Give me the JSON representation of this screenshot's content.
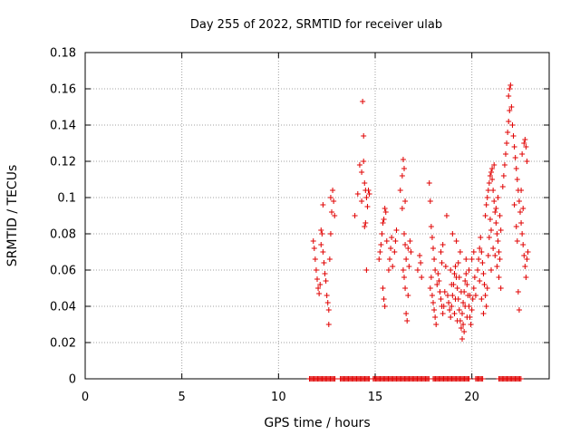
{
  "chart_data": {
    "type": "scatter",
    "title": "Day 255 of 2022, SRMTID for receiver ulab",
    "xlabel": "GPS time / hours",
    "ylabel": "SRMTID / TECUs",
    "xlim": [
      0,
      24
    ],
    "ylim": [
      0,
      0.18
    ],
    "xticks": [
      "0",
      "5",
      "10",
      "15",
      "20"
    ],
    "yticks": [
      "0",
      "0.02",
      "0.04",
      "0.06",
      "0.08",
      "0.1",
      "0.12",
      "0.14",
      "0.16",
      "0.18"
    ],
    "grid": true,
    "legend": "none",
    "marker": "+",
    "marker_color": "#e00000",
    "series": [
      {
        "name": "SRMTID",
        "points": [
          [
            11.8,
            0.076
          ],
          [
            11.85,
            0.072
          ],
          [
            11.9,
            0.066
          ],
          [
            11.95,
            0.06
          ],
          [
            12.0,
            0.055
          ],
          [
            12.05,
            0.05
          ],
          [
            12.1,
            0.047
          ],
          [
            12.15,
            0.052
          ],
          [
            12.2,
            0.074
          ],
          [
            12.25,
            0.08
          ],
          [
            12.3,
            0.07
          ],
          [
            12.35,
            0.064
          ],
          [
            12.4,
            0.058
          ],
          [
            12.45,
            0.054
          ],
          [
            12.5,
            0.046
          ],
          [
            12.55,
            0.042
          ],
          [
            12.6,
            0.038
          ],
          [
            12.6,
            0.03
          ],
          [
            12.65,
            0.066
          ],
          [
            12.7,
            0.08
          ],
          [
            12.75,
            0.092
          ],
          [
            12.8,
            0.104
          ],
          [
            12.85,
            0.098
          ],
          [
            12.9,
            0.09
          ],
          [
            12.7,
            0.1
          ],
          [
            12.2,
            0.082
          ],
          [
            12.3,
            0.096
          ],
          [
            13.95,
            0.09
          ],
          [
            14.1,
            0.102
          ],
          [
            14.2,
            0.118
          ],
          [
            14.3,
            0.114
          ],
          [
            14.35,
            0.153
          ],
          [
            14.4,
            0.134
          ],
          [
            14.45,
            0.108
          ],
          [
            14.5,
            0.104
          ],
          [
            14.55,
            0.1
          ],
          [
            14.6,
            0.095
          ],
          [
            14.5,
            0.086
          ],
          [
            14.45,
            0.084
          ],
          [
            14.55,
            0.06
          ],
          [
            14.65,
            0.104
          ],
          [
            14.7,
            0.102
          ],
          [
            14.4,
            0.12
          ],
          [
            14.3,
            0.098
          ],
          [
            15.2,
            0.066
          ],
          [
            15.25,
            0.07
          ],
          [
            15.3,
            0.074
          ],
          [
            15.35,
            0.08
          ],
          [
            15.4,
            0.086
          ],
          [
            15.45,
            0.088
          ],
          [
            15.5,
            0.094
          ],
          [
            15.55,
            0.092
          ],
          [
            15.6,
            0.076
          ],
          [
            15.4,
            0.05
          ],
          [
            15.45,
            0.044
          ],
          [
            15.5,
            0.04
          ],
          [
            15.7,
            0.06
          ],
          [
            15.75,
            0.066
          ],
          [
            15.8,
            0.072
          ],
          [
            15.85,
            0.078
          ],
          [
            15.9,
            0.062
          ],
          [
            16.0,
            0.07
          ],
          [
            16.05,
            0.076
          ],
          [
            16.1,
            0.082
          ],
          [
            16.3,
            0.104
          ],
          [
            16.4,
            0.112
          ],
          [
            16.45,
            0.121
          ],
          [
            16.5,
            0.116
          ],
          [
            16.55,
            0.098
          ],
          [
            16.4,
            0.094
          ],
          [
            16.5,
            0.08
          ],
          [
            16.55,
            0.074
          ],
          [
            16.6,
            0.066
          ],
          [
            16.45,
            0.06
          ],
          [
            16.5,
            0.056
          ],
          [
            16.55,
            0.05
          ],
          [
            16.6,
            0.036
          ],
          [
            16.65,
            0.032
          ],
          [
            16.7,
            0.046
          ],
          [
            16.75,
            0.062
          ],
          [
            16.7,
            0.072
          ],
          [
            16.8,
            0.076
          ],
          [
            16.85,
            0.07
          ],
          [
            17.2,
            0.06
          ],
          [
            17.3,
            0.068
          ],
          [
            17.35,
            0.064
          ],
          [
            17.4,
            0.056
          ],
          [
            17.8,
            0.108
          ],
          [
            17.85,
            0.098
          ],
          [
            17.9,
            0.084
          ],
          [
            17.95,
            0.078
          ],
          [
            18.0,
            0.072
          ],
          [
            18.05,
            0.066
          ],
          [
            18.1,
            0.06
          ],
          [
            17.9,
            0.056
          ],
          [
            17.85,
            0.05
          ],
          [
            17.95,
            0.046
          ],
          [
            18.0,
            0.042
          ],
          [
            18.05,
            0.038
          ],
          [
            18.1,
            0.034
          ],
          [
            18.15,
            0.03
          ],
          [
            18.2,
            0.052
          ],
          [
            18.25,
            0.058
          ],
          [
            18.3,
            0.054
          ],
          [
            18.35,
            0.048
          ],
          [
            18.4,
            0.044
          ],
          [
            18.45,
            0.04
          ],
          [
            18.5,
            0.036
          ],
          [
            18.55,
            0.04
          ],
          [
            18.6,
            0.048
          ],
          [
            18.65,
            0.062
          ],
          [
            18.5,
            0.074
          ],
          [
            18.4,
            0.07
          ],
          [
            18.45,
            0.064
          ],
          [
            18.7,
            0.09
          ],
          [
            18.75,
            0.046
          ],
          [
            18.8,
            0.042
          ],
          [
            18.85,
            0.038
          ],
          [
            18.9,
            0.034
          ],
          [
            18.95,
            0.04
          ],
          [
            19.0,
            0.046
          ],
          [
            19.05,
            0.052
          ],
          [
            19.1,
            0.058
          ],
          [
            19.15,
            0.062
          ],
          [
            19.2,
            0.056
          ],
          [
            19.25,
            0.05
          ],
          [
            19.3,
            0.044
          ],
          [
            19.35,
            0.038
          ],
          [
            19.4,
            0.032
          ],
          [
            19.45,
            0.028
          ],
          [
            19.5,
            0.036
          ],
          [
            19.55,
            0.042
          ],
          [
            19.6,
            0.048
          ],
          [
            19.65,
            0.054
          ],
          [
            19.7,
            0.058
          ],
          [
            19.75,
            0.052
          ],
          [
            19.8,
            0.046
          ],
          [
            19.85,
            0.04
          ],
          [
            19.9,
            0.034
          ],
          [
            19.95,
            0.03
          ],
          [
            20.0,
            0.038
          ],
          [
            20.05,
            0.044
          ],
          [
            20.1,
            0.05
          ],
          [
            20.15,
            0.056
          ],
          [
            19.5,
            0.022
          ],
          [
            19.6,
            0.026
          ],
          [
            19.3,
            0.064
          ],
          [
            19.4,
            0.07
          ],
          [
            19.2,
            0.076
          ],
          [
            19.0,
            0.08
          ],
          [
            19.7,
            0.066
          ],
          [
            18.9,
            0.06
          ],
          [
            19.1,
            0.036
          ],
          [
            19.25,
            0.032
          ],
          [
            19.55,
            0.03
          ],
          [
            19.75,
            0.034
          ],
          [
            19.85,
            0.06
          ],
          [
            20.0,
            0.066
          ],
          [
            20.1,
            0.07
          ],
          [
            19.45,
            0.048
          ],
          [
            19.35,
            0.056
          ],
          [
            19.15,
            0.044
          ],
          [
            18.95,
            0.052
          ],
          [
            19.65,
            0.04
          ],
          [
            19.9,
            0.046
          ],
          [
            20.2,
            0.046
          ],
          [
            20.3,
            0.06
          ],
          [
            20.35,
            0.066
          ],
          [
            20.4,
            0.072
          ],
          [
            20.45,
            0.078
          ],
          [
            20.5,
            0.07
          ],
          [
            20.55,
            0.064
          ],
          [
            20.6,
            0.058
          ],
          [
            20.65,
            0.052
          ],
          [
            20.7,
            0.046
          ],
          [
            20.75,
            0.04
          ],
          [
            20.5,
            0.044
          ],
          [
            20.6,
            0.036
          ],
          [
            20.8,
            0.05
          ],
          [
            20.4,
            0.054
          ],
          [
            20.7,
            0.09
          ],
          [
            20.75,
            0.096
          ],
          [
            20.8,
            0.1
          ],
          [
            20.85,
            0.104
          ],
          [
            20.9,
            0.108
          ],
          [
            20.95,
            0.112
          ],
          [
            21.0,
            0.114
          ],
          [
            21.05,
            0.11
          ],
          [
            21.1,
            0.104
          ],
          [
            21.15,
            0.098
          ],
          [
            21.2,
            0.092
          ],
          [
            21.25,
            0.086
          ],
          [
            21.3,
            0.08
          ],
          [
            21.35,
            0.076
          ],
          [
            21.4,
            0.07
          ],
          [
            21.45,
            0.066
          ],
          [
            21.0,
            0.082
          ],
          [
            20.9,
            0.078
          ],
          [
            21.1,
            0.072
          ],
          [
            21.2,
            0.068
          ],
          [
            21.3,
            0.062
          ],
          [
            21.4,
            0.056
          ],
          [
            21.5,
            0.05
          ],
          [
            21.05,
            0.116
          ],
          [
            21.15,
            0.118
          ],
          [
            20.95,
            0.088
          ],
          [
            21.25,
            0.094
          ],
          [
            21.35,
            0.1
          ],
          [
            21.45,
            0.09
          ],
          [
            21.5,
            0.082
          ],
          [
            21.0,
            0.06
          ],
          [
            20.85,
            0.068
          ],
          [
            21.6,
            0.106
          ],
          [
            21.65,
            0.112
          ],
          [
            21.7,
            0.118
          ],
          [
            21.75,
            0.124
          ],
          [
            21.8,
            0.13
          ],
          [
            21.85,
            0.136
          ],
          [
            21.9,
            0.142
          ],
          [
            21.95,
            0.148
          ],
          [
            21.9,
            0.156
          ],
          [
            21.95,
            0.16
          ],
          [
            22.0,
            0.162
          ],
          [
            22.05,
            0.15
          ],
          [
            22.1,
            0.14
          ],
          [
            22.15,
            0.134
          ],
          [
            22.2,
            0.128
          ],
          [
            22.25,
            0.122
          ],
          [
            22.3,
            0.116
          ],
          [
            22.35,
            0.11
          ],
          [
            22.4,
            0.104
          ],
          [
            22.45,
            0.098
          ],
          [
            22.5,
            0.092
          ],
          [
            22.55,
            0.086
          ],
          [
            22.6,
            0.08
          ],
          [
            22.65,
            0.074
          ],
          [
            22.7,
            0.068
          ],
          [
            22.75,
            0.062
          ],
          [
            22.8,
            0.056
          ],
          [
            22.4,
            0.048
          ],
          [
            22.45,
            0.038
          ],
          [
            22.6,
            0.124
          ],
          [
            22.7,
            0.13
          ],
          [
            22.75,
            0.132
          ],
          [
            22.8,
            0.128
          ],
          [
            22.85,
            0.12
          ],
          [
            22.55,
            0.104
          ],
          [
            22.65,
            0.094
          ],
          [
            22.35,
            0.076
          ],
          [
            22.3,
            0.084
          ],
          [
            22.2,
            0.096
          ],
          [
            22.85,
            0.066
          ],
          [
            22.9,
            0.07
          ]
        ]
      }
    ],
    "zero_band": {
      "y": 0,
      "segments": [
        [
          11.6,
          12.95
        ],
        [
          13.2,
          14.7
        ],
        [
          14.9,
          17.8
        ],
        [
          18.0,
          19.9
        ],
        [
          20.2,
          20.6
        ],
        [
          21.4,
          22.55
        ]
      ]
    }
  }
}
